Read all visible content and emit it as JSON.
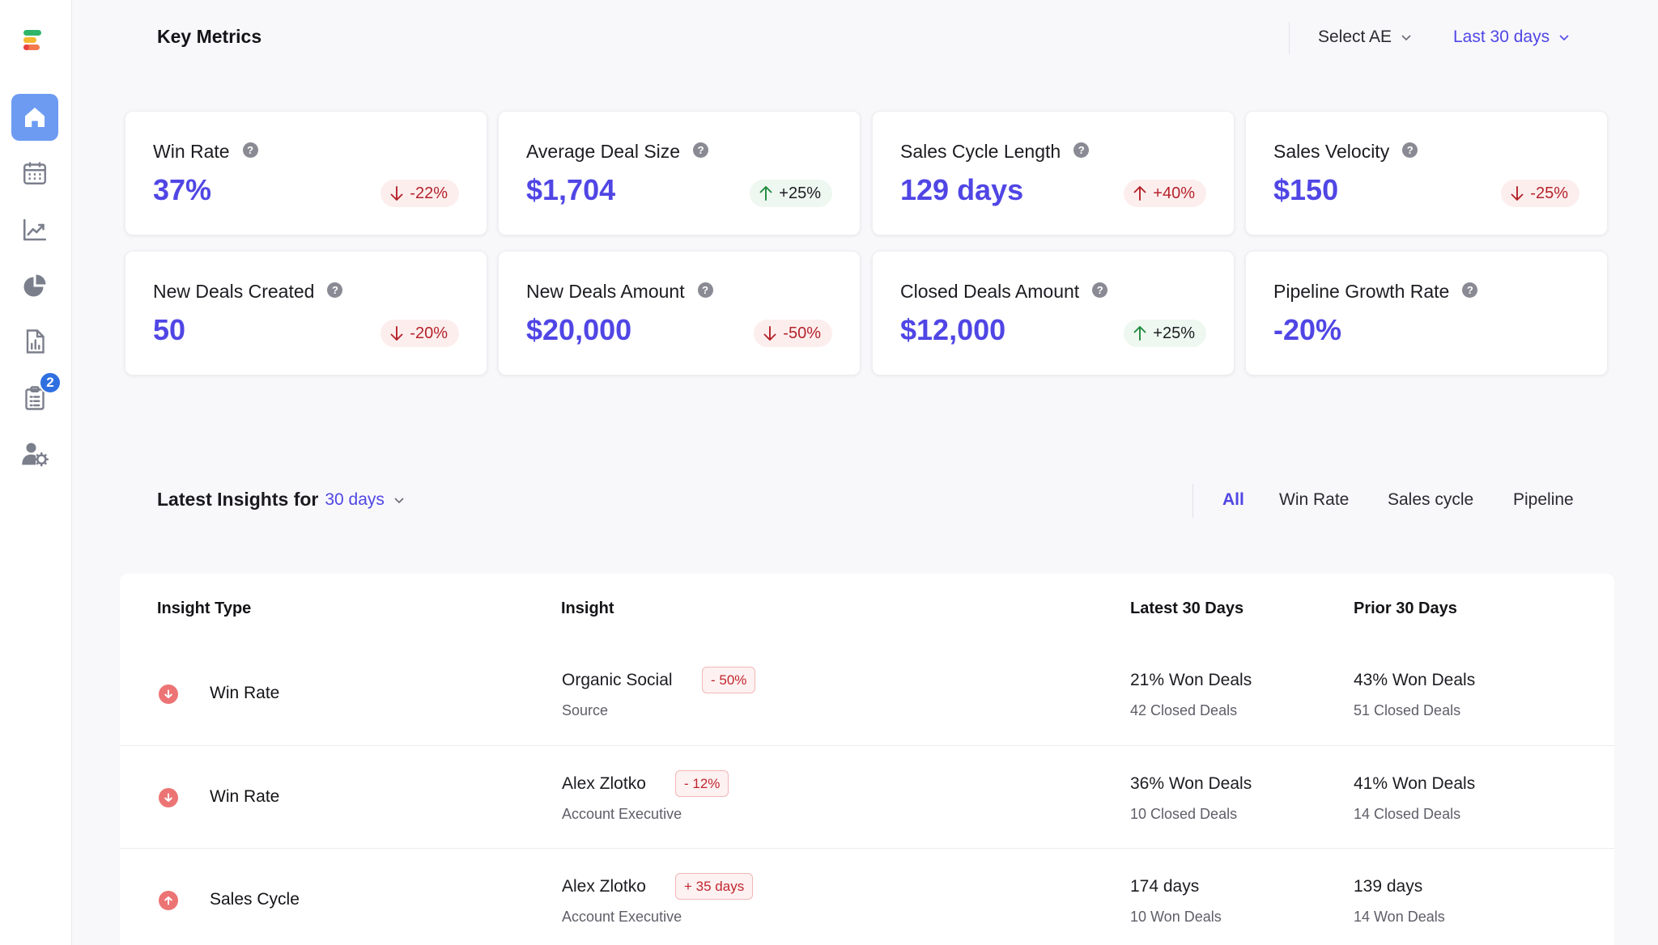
{
  "header": {
    "title": "Key Metrics",
    "select_ae": "Select AE",
    "period": "Last 30 days"
  },
  "sidebar": {
    "badge_count": "2",
    "items": [
      {
        "icon": "home-icon",
        "active": true
      },
      {
        "icon": "calendar-icon"
      },
      {
        "icon": "line-chart-icon"
      },
      {
        "icon": "pie-chart-icon"
      },
      {
        "icon": "report-icon"
      },
      {
        "icon": "clipboard-icon"
      },
      {
        "icon": "user-settings-icon"
      }
    ]
  },
  "metrics": [
    {
      "label": "Win Rate",
      "value": "37%",
      "delta": "-22%",
      "direction": "down",
      "tone": "negative"
    },
    {
      "label": "Average Deal Size",
      "value": "$1,704",
      "delta": "+25%",
      "direction": "up",
      "tone": "positive"
    },
    {
      "label": "Sales Cycle Length",
      "value": "129 days",
      "delta": "+40%",
      "direction": "up",
      "tone": "negative"
    },
    {
      "label": "Sales Velocity",
      "value": "$150",
      "delta": "-25%",
      "direction": "down",
      "tone": "negative"
    },
    {
      "label": "New Deals Created",
      "value": "50",
      "delta": "-20%",
      "direction": "down",
      "tone": "negative"
    },
    {
      "label": "New Deals Amount",
      "value": "$20,000",
      "delta": "-50%",
      "direction": "down",
      "tone": "negative"
    },
    {
      "label": "Closed Deals Amount",
      "value": "$12,000",
      "delta": "+25%",
      "direction": "up",
      "tone": "positive"
    },
    {
      "label": "Pipeline Growth Rate",
      "value": "-20%",
      "delta": null
    }
  ],
  "insights": {
    "title": "Latest Insights for",
    "period": "30 days",
    "tabs": [
      "All",
      "Win Rate",
      "Sales cycle",
      "Pipeline"
    ],
    "active_tab": "All",
    "columns": [
      "Insight Type",
      "Insight",
      "Latest 30 Days",
      "Prior 30 Days"
    ],
    "rows": [
      {
        "direction": "down",
        "type": "Win Rate",
        "insight": "Organic Social",
        "chip": "- 50%",
        "sub": "Source",
        "latest": "21% Won Deals",
        "latest_sub": "42 Closed Deals",
        "prior": "43% Won Deals",
        "prior_sub": "51 Closed Deals"
      },
      {
        "direction": "down",
        "type": "Win Rate",
        "insight": "Alex Zlotko",
        "chip": "- 12%",
        "sub": "Account Executive",
        "latest": "36% Won Deals",
        "latest_sub": "10 Closed Deals",
        "prior": "41% Won Deals",
        "prior_sub": "14 Closed Deals"
      },
      {
        "direction": "up",
        "type": "Sales Cycle",
        "insight": "Alex Zlotko",
        "chip": "+ 35 days",
        "sub": "Account Executive",
        "latest": "174 days",
        "latest_sub": "10 Won Deals",
        "prior": "139 days",
        "prior_sub": "14 Won Deals"
      }
    ]
  },
  "colors": {
    "accent": "#5046e5",
    "nav_active": "#6d9bf2",
    "negative_bg": "#fdeeee",
    "negative_text": "#b4232b",
    "positive_bg": "#eef7f0",
    "positive_arrow": "#1f8a3b",
    "indicator": "#ec7474"
  }
}
